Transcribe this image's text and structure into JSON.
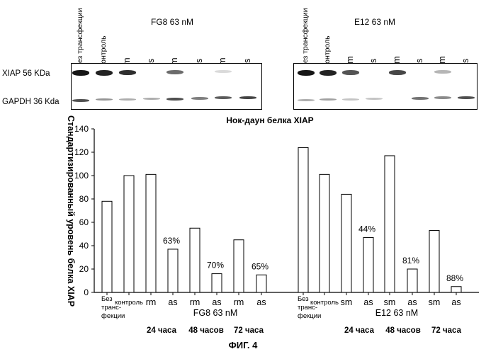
{
  "panels": [
    {
      "title": "FG8  63  nM",
      "lanes": [
        "Без трансфекции",
        "Контроль",
        "rm",
        "as",
        "rm",
        "as",
        "rm",
        "as"
      ],
      "xiap_intensity": [
        0.95,
        0.9,
        0.85,
        0.0,
        0.6,
        0.0,
        0.15,
        0.0
      ],
      "gapdh_intensity": [
        0.75,
        0.45,
        0.35,
        0.35,
        0.75,
        0.55,
        0.7,
        0.8
      ]
    },
    {
      "title": "E12  63  nM",
      "lanes": [
        "Без трансфекции",
        "Контроль",
        "sm",
        "as",
        "sm",
        "as",
        "sm",
        "as"
      ],
      "xiap_intensity": [
        0.95,
        0.9,
        0.7,
        0.0,
        0.75,
        0.0,
        0.3,
        0.0
      ],
      "gapdh_intensity": [
        0.35,
        0.4,
        0.25,
        0.25,
        0.0,
        0.6,
        0.5,
        0.75
      ]
    }
  ],
  "row_labels": {
    "xiap": "XIAP 56 KDa",
    "gapdh": "GAPDH 36 Kda"
  },
  "chart_data": {
    "type": "bar",
    "title": "Нок-даун белка XIAP",
    "ylabel": "Стандартизированный уровень белка XIAP",
    "ylim": [
      0,
      140
    ],
    "yticks": [
      0,
      20,
      40,
      60,
      80,
      100,
      120,
      140
    ],
    "groups": [
      {
        "name": "FG8 63 nM",
        "categories": [
          "Без транс-фекции",
          "контроль",
          "rm",
          "as",
          "rm",
          "as",
          "rm",
          "as"
        ],
        "values": [
          78,
          100,
          101,
          37,
          55,
          16,
          45,
          15
        ],
        "annotations": [
          "",
          "",
          "",
          "63%",
          "",
          "70%",
          "",
          "65%"
        ]
      },
      {
        "name": "E12 63 nM",
        "categories": [
          "Без транс-фекции",
          "контроль",
          "sm",
          "as",
          "sm",
          "as",
          "sm",
          "as"
        ],
        "values": [
          124,
          101,
          84,
          47,
          117,
          20,
          53,
          5
        ],
        "annotations": [
          "",
          "",
          "",
          "44%",
          "",
          "81%",
          "",
          "88%"
        ]
      }
    ],
    "time_labels": [
      "24 часа",
      "48 часов",
      "72 часа"
    ]
  },
  "figure_caption": "ФИГ. 4"
}
